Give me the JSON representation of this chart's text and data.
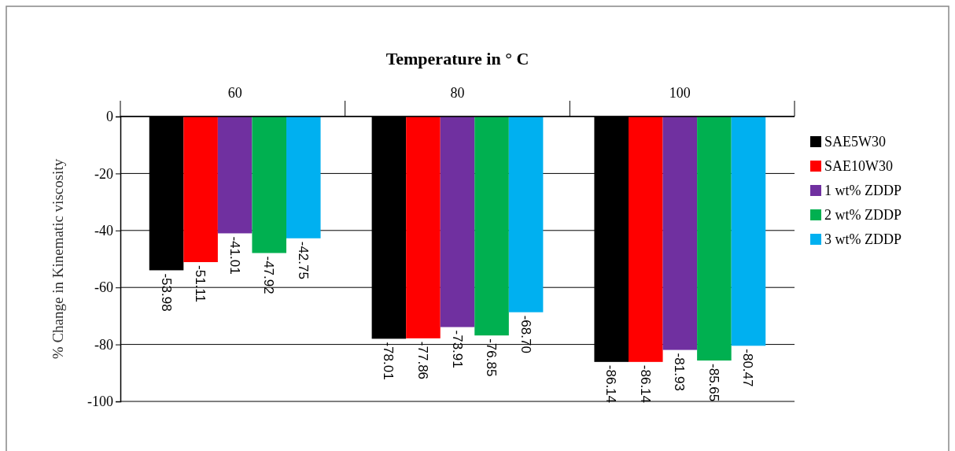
{
  "chart_data": {
    "type": "bar",
    "xlabel": "Temperature in ° C",
    "ylabel": "% Change in Kinematic viscosity",
    "categories": [
      "60",
      "80",
      "100"
    ],
    "series": [
      {
        "name": "SAE5W30",
        "color": "#000000",
        "values": [
          -53.98,
          -78.01,
          -86.14
        ],
        "value_labels": [
          "-53.98",
          "-78.01",
          "-86.14"
        ]
      },
      {
        "name": "SAE10W30",
        "color": "#ff0000",
        "values": [
          -51.11,
          -77.86,
          -86.14
        ],
        "value_labels": [
          "-51.11",
          "-77.86",
          "-86.14"
        ]
      },
      {
        "name": "1 wt% ZDDP",
        "color": "#7030a0",
        "values": [
          -41.01,
          -73.91,
          -81.93
        ],
        "value_labels": [
          "-41.01",
          "-73.91",
          "-81.93"
        ]
      },
      {
        "name": "2 wt% ZDDP",
        "color": "#00b050",
        "values": [
          -47.92,
          -76.85,
          -85.65
        ],
        "value_labels": [
          "-47.92",
          "-76.85",
          "-85.65"
        ]
      },
      {
        "name": "3 wt% ZDDP",
        "color": "#00b0f0",
        "values": [
          -42.75,
          -68.7,
          -80.47
        ],
        "value_labels": [
          "-42.75",
          "-68.70",
          "-80.47"
        ]
      }
    ],
    "ylim": [
      -100,
      0
    ],
    "yticks": [
      -100,
      -80,
      -60,
      -40,
      -20,
      0
    ],
    "grid": "y",
    "legend": "right"
  }
}
